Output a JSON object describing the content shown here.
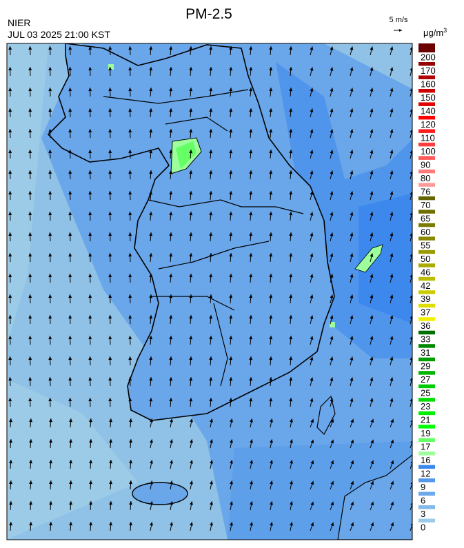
{
  "header": {
    "title": "PM-2.5",
    "agency": "NIER",
    "timestamp": "JUL 03 2025 21:00 KST",
    "wind_scale": "5 m/s"
  },
  "colorbar": {
    "unit": "μg/m",
    "unit_sup": "3",
    "levels": [
      0,
      3,
      6,
      9,
      12,
      16,
      17,
      19,
      21,
      23,
      25,
      27,
      29,
      31,
      33,
      36,
      37,
      39,
      42,
      46,
      50,
      55,
      60,
      65,
      70,
      76,
      80,
      90,
      100,
      110,
      120,
      140,
      150,
      160,
      170,
      200
    ],
    "colors": [
      "#9ccbe8",
      "#83b9ea",
      "#6ca8ea",
      "#5598ea",
      "#3d88ec",
      "#9cff9c",
      "#66ff66",
      "#00ff00",
      "#00ee00",
      "#00dd00",
      "#00cc00",
      "#00b400",
      "#009c00",
      "#008800",
      "#007000",
      "#f0f000",
      "#dede00",
      "#cccc00",
      "#bbbb00",
      "#aaaa00",
      "#999900",
      "#888800",
      "#7a7a00",
      "#6e6e00",
      "#646400",
      "#ff9a9a",
      "#ff7a7a",
      "#ff5a5a",
      "#ff3c3c",
      "#ff1e1e",
      "#ff0000",
      "#e00000",
      "#cc0000",
      "#b00000",
      "#960000",
      "#6a0000"
    ]
  }
}
